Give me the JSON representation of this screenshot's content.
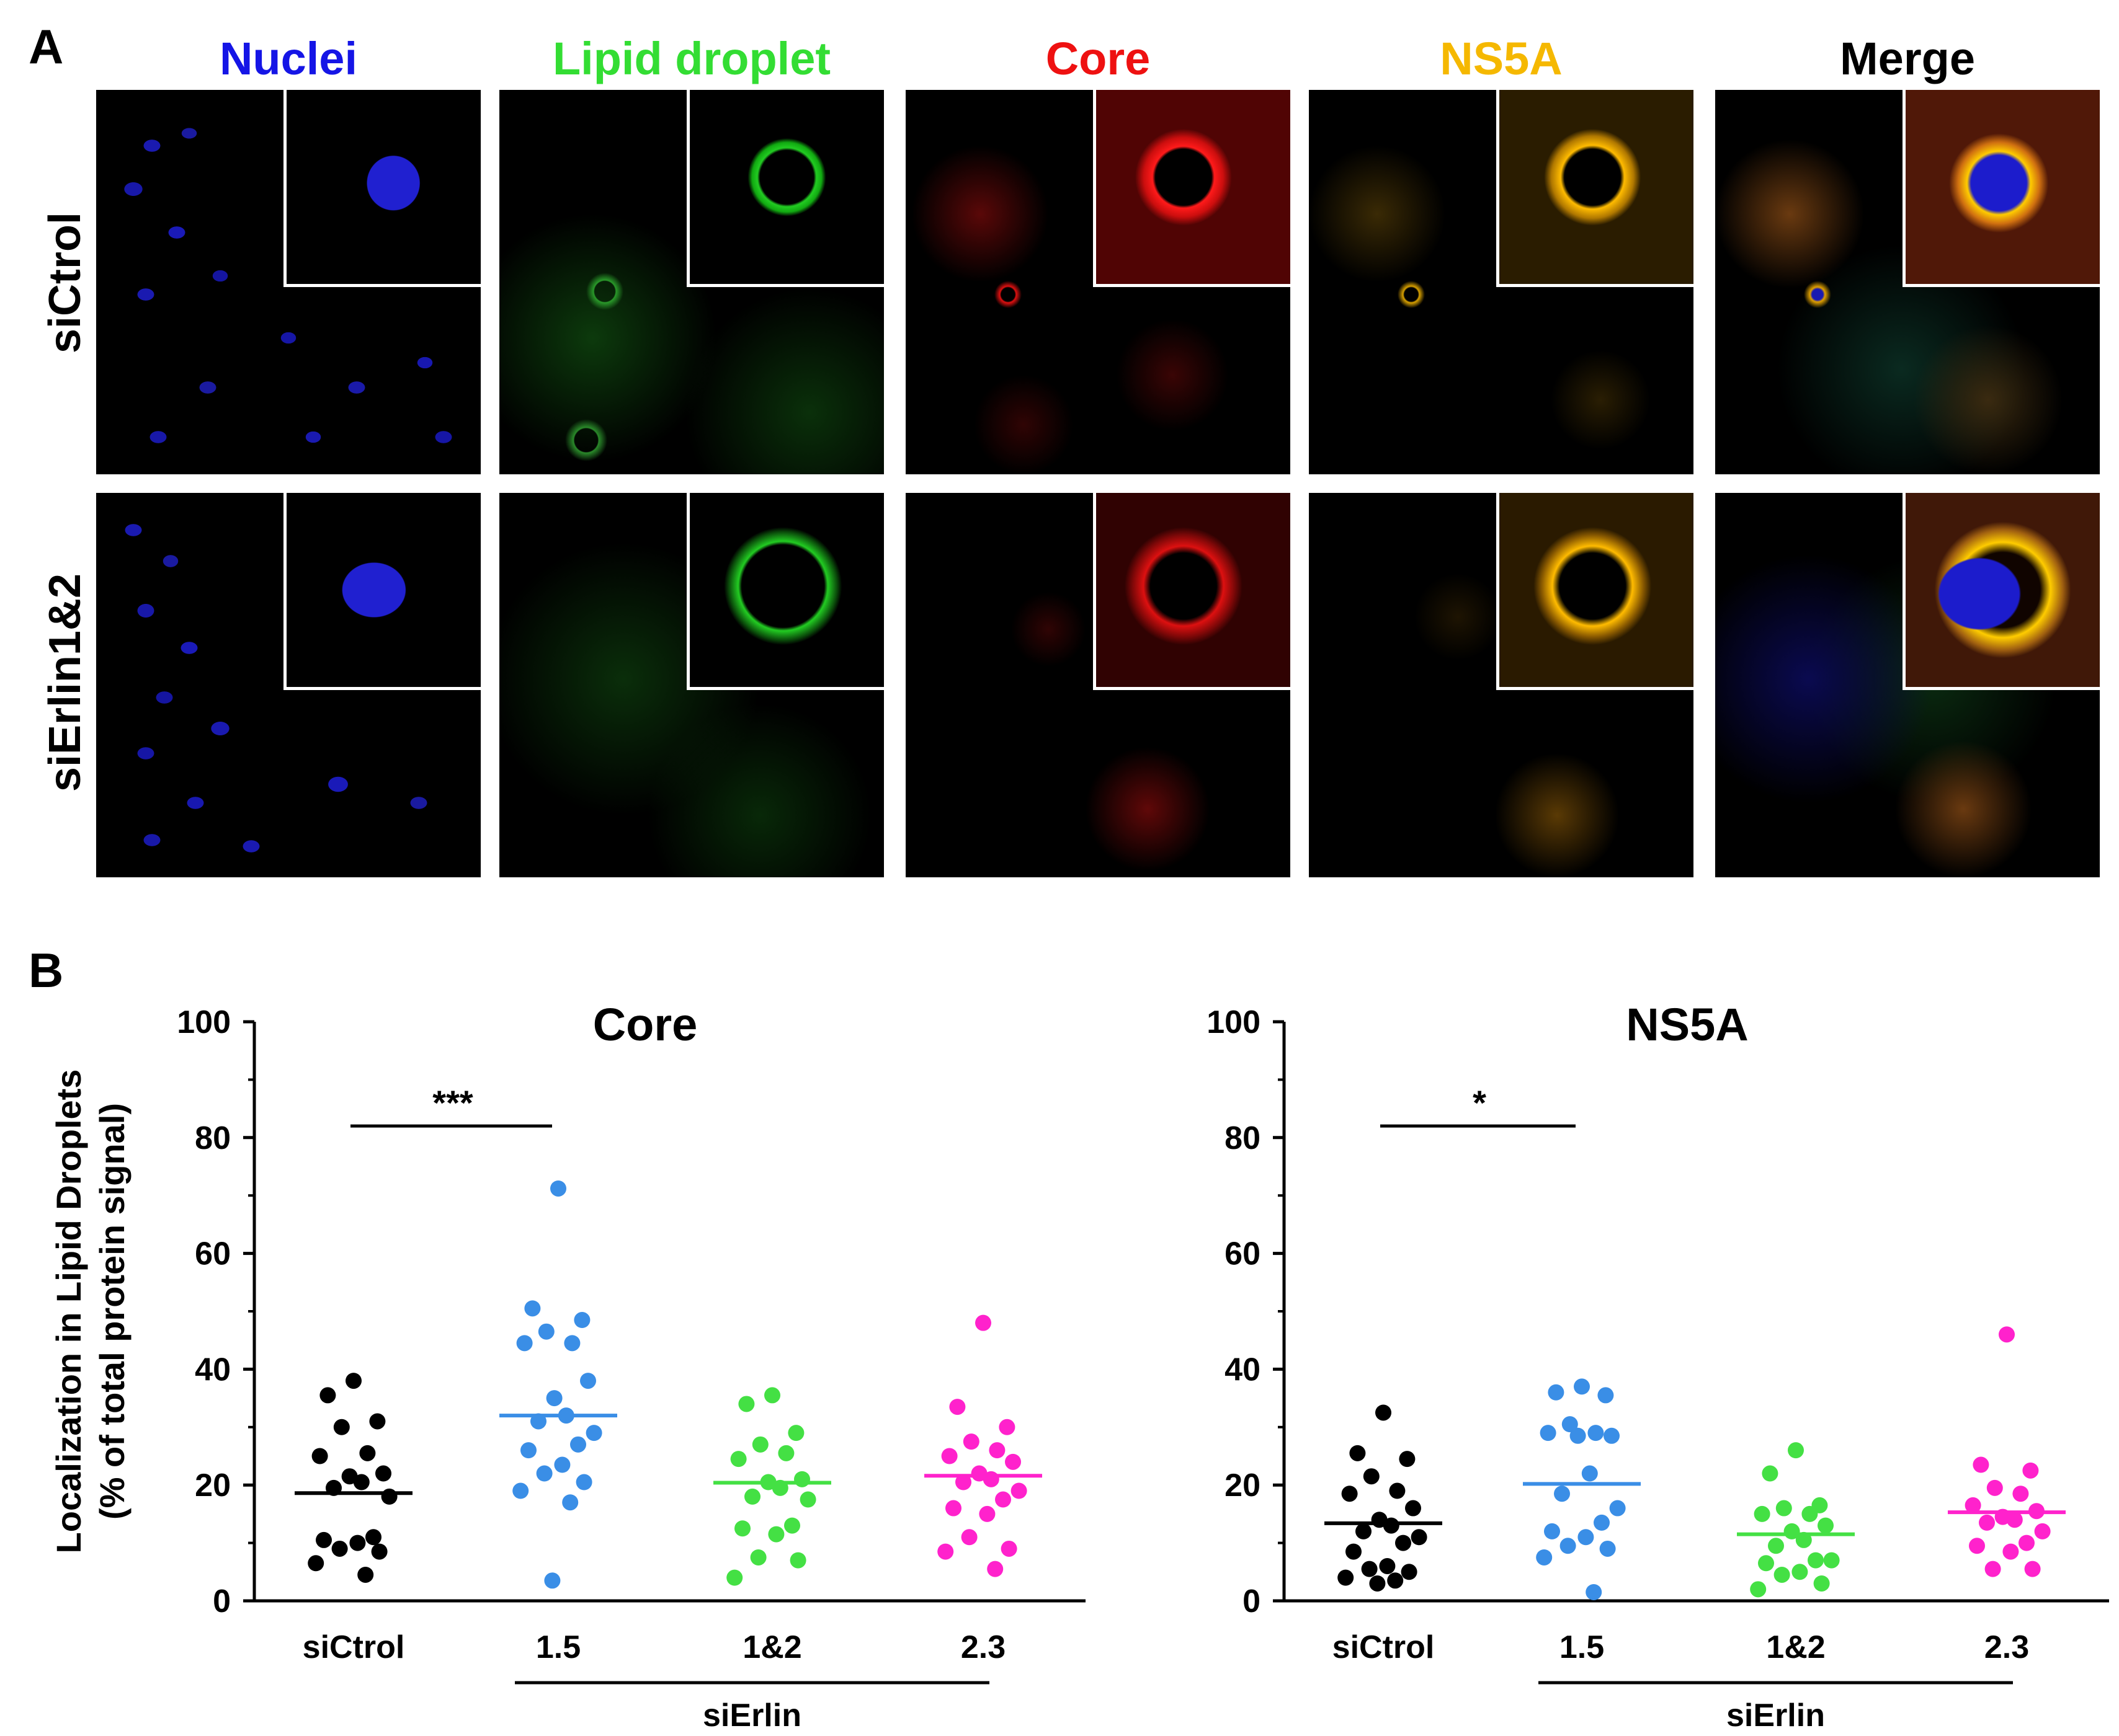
{
  "panel_a": {
    "letter": "A",
    "columns": [
      {
        "label": "Nuclei",
        "color": "#1515e6"
      },
      {
        "label": "Lipid droplet",
        "color": "#33dd33"
      },
      {
        "label": "Core",
        "color": "#ee1111"
      },
      {
        "label": "NS5A",
        "color": "#f5b800"
      },
      {
        "label": "Merge",
        "color": "#000000"
      }
    ],
    "rows": [
      {
        "label": "siCtrol"
      },
      {
        "label": "siErlin1&2"
      }
    ]
  },
  "panel_b": {
    "letter": "B",
    "ylabel_line1": "Localization in Lipid Droplets",
    "ylabel_line2": "(% of total protein signal)",
    "group_label": "siErlin"
  },
  "chart_data": [
    {
      "type": "scatter",
      "title": "Core",
      "categories": [
        "siCtrol",
        "1.5",
        "1&2",
        "2.3"
      ],
      "ylim": [
        0,
        100
      ],
      "yticks": [
        0,
        20,
        40,
        60,
        80,
        100
      ],
      "colors": [
        "#000000",
        "#3a8ee6",
        "#44e044",
        "#ff22cc"
      ],
      "series": [
        {
          "name": "siCtrol",
          "values": [
            38,
            35.5,
            31,
            30,
            25.5,
            25,
            22,
            21.5,
            20.5,
            19.5,
            18,
            11,
            10.5,
            10,
            9,
            8.5,
            6.5,
            4.5
          ],
          "mean": 18.6
        },
        {
          "name": "1.5",
          "values": [
            71.2,
            50.5,
            48.5,
            46.5,
            44.5,
            44.5,
            38,
            35,
            32,
            31,
            29,
            27,
            26,
            23.5,
            22,
            20.5,
            19,
            17,
            3.5
          ],
          "mean": 32
        },
        {
          "name": "1&2",
          "values": [
            35.5,
            34,
            29,
            27,
            25.5,
            24.5,
            21,
            20.5,
            19.5,
            18,
            17.5,
            13,
            12.5,
            11.5,
            7.5,
            7,
            4
          ],
          "mean": 20.4
        },
        {
          "name": "2.3",
          "values": [
            48,
            33.5,
            30,
            27.5,
            26,
            25,
            24,
            22,
            21,
            20.5,
            19,
            17.5,
            16,
            15,
            11,
            9,
            8.5,
            5.5
          ],
          "mean": 21.6
        }
      ],
      "significance": {
        "from": "siCtrol",
        "to": "1.5",
        "label": "***",
        "y": 82
      }
    },
    {
      "type": "scatter",
      "title": "NS5A",
      "categories": [
        "siCtrol",
        "1.5",
        "1&2",
        "2.3"
      ],
      "ylim": [
        0,
        100
      ],
      "yticks": [
        0,
        20,
        40,
        60,
        80,
        100
      ],
      "colors": [
        "#000000",
        "#3a8ee6",
        "#44e044",
        "#ff22cc"
      ],
      "series": [
        {
          "name": "siCtrol",
          "values": [
            32.5,
            25.5,
            24.5,
            21.5,
            19,
            18.5,
            16,
            14,
            13,
            12,
            11,
            10,
            8.5,
            6,
            5.5,
            5,
            4,
            3.5,
            3
          ],
          "mean": 13.4
        },
        {
          "name": "1.5",
          "values": [
            37,
            36,
            35.5,
            30.5,
            29,
            29,
            28.5,
            28.5,
            22,
            18.5,
            16,
            13.5,
            12,
            11,
            9.5,
            9,
            7.5,
            1.5
          ],
          "mean": 20.2
        },
        {
          "name": "1&2",
          "values": [
            26,
            22,
            16.5,
            16,
            15,
            15,
            13,
            12,
            10.5,
            9.5,
            7,
            7,
            6.5,
            5,
            4.5,
            3,
            2
          ],
          "mean": 11.5
        },
        {
          "name": "2.3",
          "values": [
            46,
            23.5,
            22.5,
            19.5,
            18.5,
            16.5,
            15.5,
            14.5,
            14,
            13.5,
            12,
            10,
            9.5,
            8.5,
            5.5,
            5.5
          ],
          "mean": 15.3
        }
      ],
      "significance": {
        "from": "siCtrol",
        "to": "1.5",
        "label": "*",
        "y": 82
      }
    }
  ]
}
